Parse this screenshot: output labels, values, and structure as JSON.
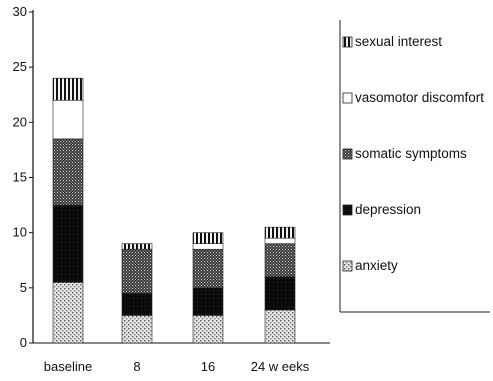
{
  "chart_data": {
    "type": "bar",
    "stacked": true,
    "categories": [
      "baseline",
      "8",
      "16",
      "24 w eeks"
    ],
    "ylim": [
      0,
      30
    ],
    "yticks": [
      0,
      5,
      10,
      15,
      20,
      25,
      30
    ],
    "grid": false,
    "legend_position": "right",
    "series": [
      {
        "name": "anxiety",
        "values": [
          5.5,
          2.5,
          2.5,
          3.0
        ],
        "pattern": "dots-light"
      },
      {
        "name": "depression",
        "values": [
          7.0,
          2.0,
          2.5,
          3.0
        ],
        "pattern": "solid-black"
      },
      {
        "name": "somatic symptoms",
        "values": [
          6.0,
          4.0,
          3.5,
          3.0
        ],
        "pattern": "dots-dark"
      },
      {
        "name": "vasomotor discomfort",
        "values": [
          3.5,
          0.0,
          0.5,
          0.5
        ],
        "pattern": "white"
      },
      {
        "name": "sexual interest",
        "values": [
          2.0,
          0.5,
          1.0,
          1.0
        ],
        "pattern": "stripes"
      }
    ]
  },
  "legend": {
    "order": [
      "sexual interest",
      "vasomotor discomfort",
      "somatic symptoms",
      "depression",
      "anxiety"
    ]
  }
}
